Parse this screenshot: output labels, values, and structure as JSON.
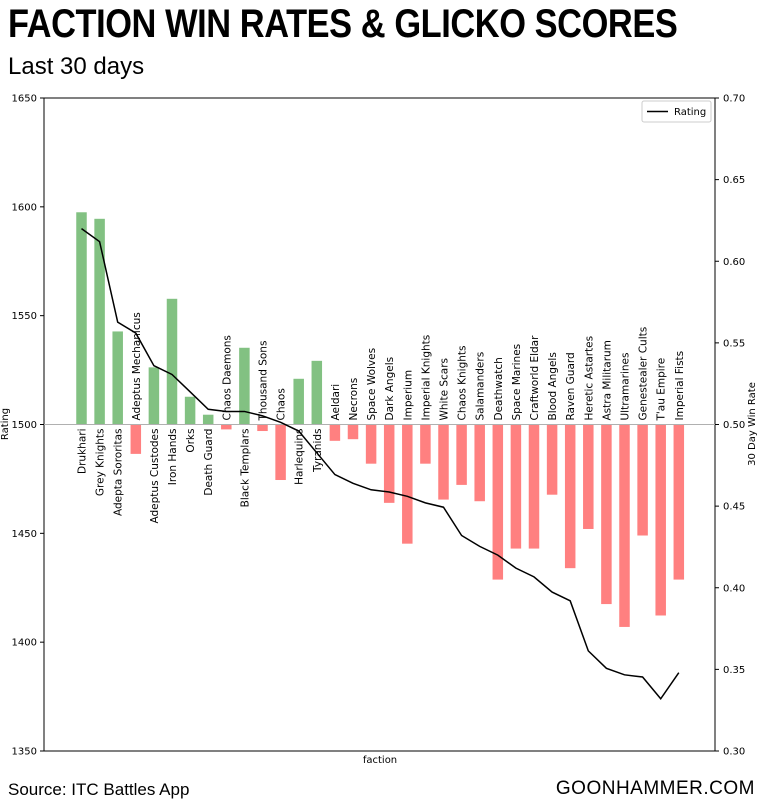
{
  "header": {
    "title": "FACTION WIN RATES & GLICKO SCORES",
    "subtitle": "Last 30 days"
  },
  "footer": {
    "source": "Source: ITC Battles App",
    "brand": "GOONHAMMER.COM"
  },
  "colors": {
    "positive": "#82c182",
    "negative": "#ff8080",
    "line": "#000000"
  },
  "chart_data": {
    "type": "bar",
    "xlabel": "faction",
    "ylabel": "Rating",
    "y2label": "30 Day Win Rate",
    "ylim": [
      1350,
      1650
    ],
    "y2lim": [
      0.3,
      0.7
    ],
    "yticks": [
      "1350",
      "1400",
      "1450",
      "1500",
      "1550",
      "1600",
      "1650"
    ],
    "y2ticks": [
      "0.30",
      "0.35",
      "0.40",
      "0.45",
      "0.50",
      "0.55",
      "0.60",
      "0.65",
      "0.70"
    ],
    "legend": {
      "label": "Rating",
      "position": "top-right"
    },
    "categories": [
      "Drukhari",
      "Grey Knights",
      "Adepta Sororitas",
      "Adeptus Mechanicus",
      "Adeptus Custodes",
      "Iron Hands",
      "Orks",
      "Death Guard",
      "Chaos Daemons",
      "Black Templars",
      "Thousand Sons",
      "Chaos",
      "Harlequins",
      "Tyranids",
      "Aeldari",
      "Necrons",
      "Space Wolves",
      "Dark Angels",
      "Imperium",
      "Imperial Knights",
      "White Scars",
      "Chaos Knights",
      "Salamanders",
      "Deathwatch",
      "Space Marines",
      "Craftworld Eldar",
      "Blood Angels",
      "Raven Guard",
      "Heretic Astartes",
      "Astra Militarum",
      "Ultramarines",
      "Genestealer Cults",
      "T'au Empire",
      "Imperial Fists"
    ],
    "series": [
      {
        "name": "30 Day Win Rate",
        "axis": "right",
        "type": "bar",
        "values": [
          0.63,
          0.626,
          0.557,
          0.482,
          0.535,
          0.577,
          0.517,
          0.506,
          0.497,
          0.547,
          0.496,
          0.466,
          0.528,
          0.539,
          0.49,
          0.491,
          0.476,
          0.452,
          0.427,
          0.476,
          0.454,
          0.463,
          0.453,
          0.405,
          0.424,
          0.424,
          0.457,
          0.412,
          0.436,
          0.39,
          0.376,
          0.432,
          0.383,
          0.405
        ]
      },
      {
        "name": "Rating",
        "axis": "left",
        "type": "line",
        "values": [
          1590,
          1584,
          1547,
          1542,
          1527,
          1523,
          1515,
          1507,
          1506,
          1506,
          1504,
          1501,
          1497,
          1487,
          1477,
          1473,
          1470,
          1469,
          1467,
          1464,
          1462,
          1449,
          1444,
          1440,
          1434,
          1430,
          1423,
          1419,
          1396,
          1388,
          1385,
          1384,
          1374,
          1386
        ]
      }
    ]
  }
}
